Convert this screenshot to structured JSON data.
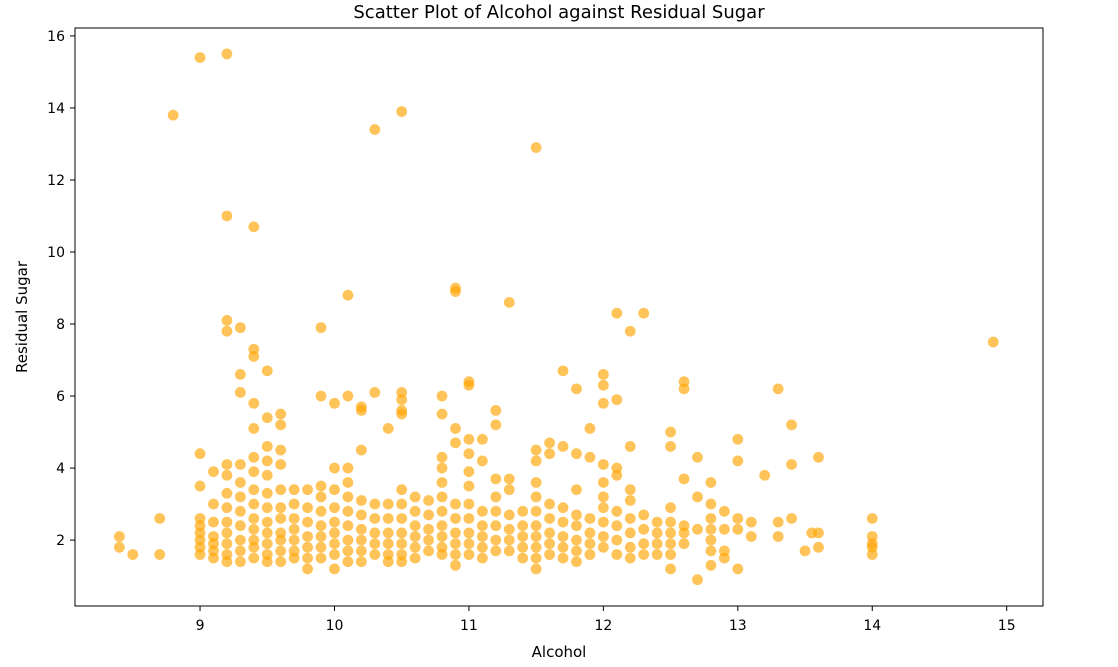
{
  "chart_data": {
    "type": "scatter",
    "title": "Scatter Plot of Alcohol against Residual Sugar",
    "xlabel": "Alcohol",
    "ylabel": "Residual Sugar",
    "xlim": [
      8.07,
      15.27
    ],
    "ylim": [
      0.17,
      16.22
    ],
    "xticks": [
      9,
      10,
      11,
      12,
      13,
      14,
      15
    ],
    "yticks": [
      2,
      4,
      6,
      8,
      10,
      12,
      14,
      16
    ],
    "grid": false,
    "legend": "none",
    "marker_color": "#ffa500",
    "marker_alpha": 0.65,
    "points": [
      [
        8.4,
        2.1
      ],
      [
        8.4,
        1.8
      ],
      [
        8.5,
        1.6
      ],
      [
        8.7,
        2.6
      ],
      [
        8.7,
        1.6
      ],
      [
        8.8,
        13.8
      ],
      [
        9.0,
        15.4
      ],
      [
        9.0,
        4.4
      ],
      [
        9.0,
        3.5
      ],
      [
        9.0,
        2.6
      ],
      [
        9.0,
        2.4
      ],
      [
        9.0,
        2.2
      ],
      [
        9.0,
        2.0
      ],
      [
        9.0,
        1.8
      ],
      [
        9.0,
        1.6
      ],
      [
        9.1,
        3.9
      ],
      [
        9.1,
        3.0
      ],
      [
        9.1,
        2.5
      ],
      [
        9.1,
        2.1
      ],
      [
        9.1,
        1.9
      ],
      [
        9.1,
        1.7
      ],
      [
        9.1,
        1.5
      ],
      [
        9.2,
        15.5
      ],
      [
        9.2,
        11.0
      ],
      [
        9.2,
        8.1
      ],
      [
        9.2,
        7.8
      ],
      [
        9.2,
        4.1
      ],
      [
        9.2,
        3.8
      ],
      [
        9.2,
        3.3
      ],
      [
        9.2,
        2.9
      ],
      [
        9.2,
        2.5
      ],
      [
        9.2,
        2.2
      ],
      [
        9.2,
        1.9
      ],
      [
        9.2,
        1.6
      ],
      [
        9.2,
        1.4
      ],
      [
        9.3,
        7.9
      ],
      [
        9.3,
        6.6
      ],
      [
        9.3,
        6.1
      ],
      [
        9.3,
        4.1
      ],
      [
        9.3,
        3.6
      ],
      [
        9.3,
        3.2
      ],
      [
        9.3,
        2.8
      ],
      [
        9.3,
        2.4
      ],
      [
        9.3,
        2.0
      ],
      [
        9.3,
        1.7
      ],
      [
        9.3,
        1.4
      ],
      [
        9.4,
        10.7
      ],
      [
        9.4,
        7.3
      ],
      [
        9.4,
        7.1
      ],
      [
        9.4,
        5.8
      ],
      [
        9.4,
        5.1
      ],
      [
        9.4,
        4.3
      ],
      [
        9.4,
        3.9
      ],
      [
        9.4,
        3.4
      ],
      [
        9.4,
        3.0
      ],
      [
        9.4,
        2.6
      ],
      [
        9.4,
        2.3
      ],
      [
        9.4,
        2.0
      ],
      [
        9.4,
        1.8
      ],
      [
        9.4,
        1.5
      ],
      [
        9.5,
        6.7
      ],
      [
        9.5,
        5.4
      ],
      [
        9.5,
        4.6
      ],
      [
        9.5,
        4.2
      ],
      [
        9.5,
        3.8
      ],
      [
        9.5,
        3.3
      ],
      [
        9.5,
        2.9
      ],
      [
        9.5,
        2.5
      ],
      [
        9.5,
        2.2
      ],
      [
        9.5,
        1.9
      ],
      [
        9.5,
        1.6
      ],
      [
        9.5,
        1.4
      ],
      [
        9.6,
        5.5
      ],
      [
        9.6,
        5.2
      ],
      [
        9.6,
        4.5
      ],
      [
        9.6,
        4.1
      ],
      [
        9.6,
        3.4
      ],
      [
        9.6,
        2.9
      ],
      [
        9.6,
        2.6
      ],
      [
        9.6,
        2.2
      ],
      [
        9.6,
        2.0
      ],
      [
        9.6,
        1.7
      ],
      [
        9.6,
        1.4
      ],
      [
        9.7,
        3.4
      ],
      [
        9.7,
        3.0
      ],
      [
        9.7,
        2.6
      ],
      [
        9.7,
        2.3
      ],
      [
        9.7,
        2.0
      ],
      [
        9.7,
        1.7
      ],
      [
        9.7,
        1.5
      ],
      [
        9.8,
        3.4
      ],
      [
        9.8,
        2.9
      ],
      [
        9.8,
        2.5
      ],
      [
        9.8,
        2.1
      ],
      [
        9.8,
        1.8
      ],
      [
        9.8,
        1.5
      ],
      [
        9.8,
        1.2
      ],
      [
        9.9,
        7.9
      ],
      [
        9.9,
        6.0
      ],
      [
        9.9,
        3.5
      ],
      [
        9.9,
        3.2
      ],
      [
        9.9,
        2.8
      ],
      [
        9.9,
        2.4
      ],
      [
        9.9,
        2.1
      ],
      [
        9.9,
        1.8
      ],
      [
        9.9,
        1.5
      ],
      [
        10.0,
        5.8
      ],
      [
        10.0,
        4.0
      ],
      [
        10.0,
        3.4
      ],
      [
        10.0,
        2.9
      ],
      [
        10.0,
        2.5
      ],
      [
        10.0,
        2.2
      ],
      [
        10.0,
        1.9
      ],
      [
        10.0,
        1.6
      ],
      [
        10.0,
        1.2
      ],
      [
        10.1,
        8.8
      ],
      [
        10.1,
        6.0
      ],
      [
        10.1,
        4.0
      ],
      [
        10.1,
        3.6
      ],
      [
        10.1,
        3.2
      ],
      [
        10.1,
        2.8
      ],
      [
        10.1,
        2.4
      ],
      [
        10.1,
        2.0
      ],
      [
        10.1,
        1.7
      ],
      [
        10.1,
        1.4
      ],
      [
        10.2,
        5.7
      ],
      [
        10.2,
        5.6
      ],
      [
        10.2,
        4.5
      ],
      [
        10.2,
        3.1
      ],
      [
        10.2,
        2.7
      ],
      [
        10.2,
        2.3
      ],
      [
        10.2,
        2.0
      ],
      [
        10.2,
        1.7
      ],
      [
        10.2,
        1.4
      ],
      [
        10.3,
        13.4
      ],
      [
        10.3,
        6.1
      ],
      [
        10.3,
        3.0
      ],
      [
        10.3,
        2.6
      ],
      [
        10.3,
        2.2
      ],
      [
        10.3,
        1.9
      ],
      [
        10.3,
        1.6
      ],
      [
        10.4,
        5.1
      ],
      [
        10.4,
        3.0
      ],
      [
        10.4,
        2.6
      ],
      [
        10.4,
        2.2
      ],
      [
        10.4,
        1.9
      ],
      [
        10.4,
        1.6
      ],
      [
        10.4,
        1.4
      ],
      [
        10.5,
        13.9
      ],
      [
        10.5,
        6.1
      ],
      [
        10.5,
        5.9
      ],
      [
        10.5,
        5.6
      ],
      [
        10.5,
        5.5
      ],
      [
        10.5,
        3.4
      ],
      [
        10.5,
        3.0
      ],
      [
        10.5,
        2.6
      ],
      [
        10.5,
        2.2
      ],
      [
        10.5,
        1.9
      ],
      [
        10.5,
        1.6
      ],
      [
        10.5,
        1.4
      ],
      [
        10.6,
        3.2
      ],
      [
        10.6,
        2.8
      ],
      [
        10.6,
        2.4
      ],
      [
        10.6,
        2.1
      ],
      [
        10.6,
        1.8
      ],
      [
        10.6,
        1.5
      ],
      [
        10.7,
        3.1
      ],
      [
        10.7,
        2.7
      ],
      [
        10.7,
        2.3
      ],
      [
        10.7,
        2.0
      ],
      [
        10.7,
        1.7
      ],
      [
        10.8,
        6.0
      ],
      [
        10.8,
        5.5
      ],
      [
        10.8,
        4.3
      ],
      [
        10.8,
        4.0
      ],
      [
        10.8,
        3.6
      ],
      [
        10.8,
        3.2
      ],
      [
        10.8,
        2.8
      ],
      [
        10.8,
        2.4
      ],
      [
        10.8,
        2.1
      ],
      [
        10.8,
        1.8
      ],
      [
        10.8,
        1.6
      ],
      [
        10.9,
        9.0
      ],
      [
        10.9,
        8.9
      ],
      [
        10.9,
        5.1
      ],
      [
        10.9,
        4.7
      ],
      [
        10.9,
        3.0
      ],
      [
        10.9,
        2.6
      ],
      [
        10.9,
        2.2
      ],
      [
        10.9,
        1.9
      ],
      [
        10.9,
        1.6
      ],
      [
        10.9,
        1.3
      ],
      [
        11.0,
        6.4
      ],
      [
        11.0,
        6.3
      ],
      [
        11.0,
        4.8
      ],
      [
        11.0,
        4.4
      ],
      [
        11.0,
        3.9
      ],
      [
        11.0,
        3.5
      ],
      [
        11.0,
        3.0
      ],
      [
        11.0,
        2.6
      ],
      [
        11.0,
        2.2
      ],
      [
        11.0,
        1.9
      ],
      [
        11.0,
        1.6
      ],
      [
        11.1,
        4.8
      ],
      [
        11.1,
        4.2
      ],
      [
        11.1,
        2.8
      ],
      [
        11.1,
        2.4
      ],
      [
        11.1,
        2.1
      ],
      [
        11.1,
        1.8
      ],
      [
        11.1,
        1.5
      ],
      [
        11.2,
        5.6
      ],
      [
        11.2,
        5.2
      ],
      [
        11.2,
        3.7
      ],
      [
        11.2,
        3.2
      ],
      [
        11.2,
        2.8
      ],
      [
        11.2,
        2.4
      ],
      [
        11.2,
        2.0
      ],
      [
        11.2,
        1.7
      ],
      [
        11.3,
        8.6
      ],
      [
        11.3,
        3.7
      ],
      [
        11.3,
        3.4
      ],
      [
        11.3,
        2.7
      ],
      [
        11.3,
        2.3
      ],
      [
        11.3,
        2.0
      ],
      [
        11.3,
        1.7
      ],
      [
        11.4,
        2.8
      ],
      [
        11.4,
        2.4
      ],
      [
        11.4,
        2.1
      ],
      [
        11.4,
        1.8
      ],
      [
        11.4,
        1.5
      ],
      [
        11.5,
        12.9
      ],
      [
        11.5,
        4.5
      ],
      [
        11.5,
        4.2
      ],
      [
        11.5,
        3.6
      ],
      [
        11.5,
        3.2
      ],
      [
        11.5,
        2.8
      ],
      [
        11.5,
        2.4
      ],
      [
        11.5,
        2.1
      ],
      [
        11.5,
        1.8
      ],
      [
        11.5,
        1.5
      ],
      [
        11.5,
        1.2
      ],
      [
        11.6,
        4.7
      ],
      [
        11.6,
        4.4
      ],
      [
        11.6,
        3.0
      ],
      [
        11.6,
        2.6
      ],
      [
        11.6,
        2.2
      ],
      [
        11.6,
        1.9
      ],
      [
        11.6,
        1.6
      ],
      [
        11.7,
        6.7
      ],
      [
        11.7,
        4.6
      ],
      [
        11.7,
        2.9
      ],
      [
        11.7,
        2.5
      ],
      [
        11.7,
        2.1
      ],
      [
        11.7,
        1.8
      ],
      [
        11.7,
        1.5
      ],
      [
        11.8,
        6.2
      ],
      [
        11.8,
        4.4
      ],
      [
        11.8,
        3.4
      ],
      [
        11.8,
        2.7
      ],
      [
        11.8,
        2.4
      ],
      [
        11.8,
        2.0
      ],
      [
        11.8,
        1.7
      ],
      [
        11.8,
        1.4
      ],
      [
        11.9,
        5.1
      ],
      [
        11.9,
        4.3
      ],
      [
        11.9,
        2.6
      ],
      [
        11.9,
        2.2
      ],
      [
        11.9,
        1.9
      ],
      [
        11.9,
        1.6
      ],
      [
        12.0,
        6.6
      ],
      [
        12.0,
        6.3
      ],
      [
        12.0,
        5.8
      ],
      [
        12.0,
        4.1
      ],
      [
        12.0,
        3.6
      ],
      [
        12.0,
        3.2
      ],
      [
        12.0,
        2.9
      ],
      [
        12.0,
        2.5
      ],
      [
        12.0,
        2.1
      ],
      [
        12.0,
        1.8
      ],
      [
        12.1,
        8.3
      ],
      [
        12.1,
        5.9
      ],
      [
        12.1,
        4.0
      ],
      [
        12.1,
        3.8
      ],
      [
        12.1,
        2.8
      ],
      [
        12.1,
        2.4
      ],
      [
        12.1,
        2.0
      ],
      [
        12.1,
        1.6
      ],
      [
        12.2,
        7.8
      ],
      [
        12.2,
        4.6
      ],
      [
        12.2,
        3.4
      ],
      [
        12.2,
        3.1
      ],
      [
        12.2,
        2.6
      ],
      [
        12.2,
        2.2
      ],
      [
        12.2,
        1.8
      ],
      [
        12.2,
        1.5
      ],
      [
        12.3,
        8.3
      ],
      [
        12.3,
        2.7
      ],
      [
        12.3,
        2.3
      ],
      [
        12.3,
        1.9
      ],
      [
        12.3,
        1.6
      ],
      [
        12.4,
        2.5
      ],
      [
        12.4,
        2.2
      ],
      [
        12.4,
        1.9
      ],
      [
        12.4,
        1.6
      ],
      [
        12.5,
        5.0
      ],
      [
        12.5,
        4.6
      ],
      [
        12.5,
        2.9
      ],
      [
        12.5,
        2.5
      ],
      [
        12.5,
        2.2
      ],
      [
        12.5,
        1.9
      ],
      [
        12.5,
        1.6
      ],
      [
        12.5,
        1.2
      ],
      [
        12.6,
        6.4
      ],
      [
        12.6,
        6.2
      ],
      [
        12.6,
        3.7
      ],
      [
        12.6,
        2.4
      ],
      [
        12.6,
        2.2
      ],
      [
        12.6,
        1.9
      ],
      [
        12.7,
        4.3
      ],
      [
        12.7,
        3.2
      ],
      [
        12.7,
        2.3
      ],
      [
        12.7,
        0.9
      ],
      [
        12.8,
        3.6
      ],
      [
        12.8,
        3.0
      ],
      [
        12.8,
        2.6
      ],
      [
        12.8,
        2.3
      ],
      [
        12.8,
        2.0
      ],
      [
        12.8,
        1.7
      ],
      [
        12.8,
        1.3
      ],
      [
        12.9,
        2.8
      ],
      [
        12.9,
        2.3
      ],
      [
        12.9,
        1.7
      ],
      [
        12.9,
        1.5
      ],
      [
        13.0,
        4.8
      ],
      [
        13.0,
        4.2
      ],
      [
        13.0,
        2.6
      ],
      [
        13.0,
        2.3
      ],
      [
        13.0,
        1.2
      ],
      [
        13.1,
        2.5
      ],
      [
        13.1,
        2.1
      ],
      [
        13.2,
        3.8
      ],
      [
        13.3,
        6.2
      ],
      [
        13.3,
        2.5
      ],
      [
        13.3,
        2.1
      ],
      [
        13.4,
        5.2
      ],
      [
        13.4,
        4.1
      ],
      [
        13.4,
        2.6
      ],
      [
        13.5,
        1.7
      ],
      [
        13.55,
        2.2
      ],
      [
        13.6,
        4.3
      ],
      [
        13.6,
        2.2
      ],
      [
        13.6,
        1.8
      ],
      [
        14.0,
        2.6
      ],
      [
        14.0,
        2.1
      ],
      [
        14.0,
        1.9
      ],
      [
        14.0,
        1.8
      ],
      [
        14.0,
        1.6
      ],
      [
        14.9,
        7.5
      ]
    ]
  }
}
